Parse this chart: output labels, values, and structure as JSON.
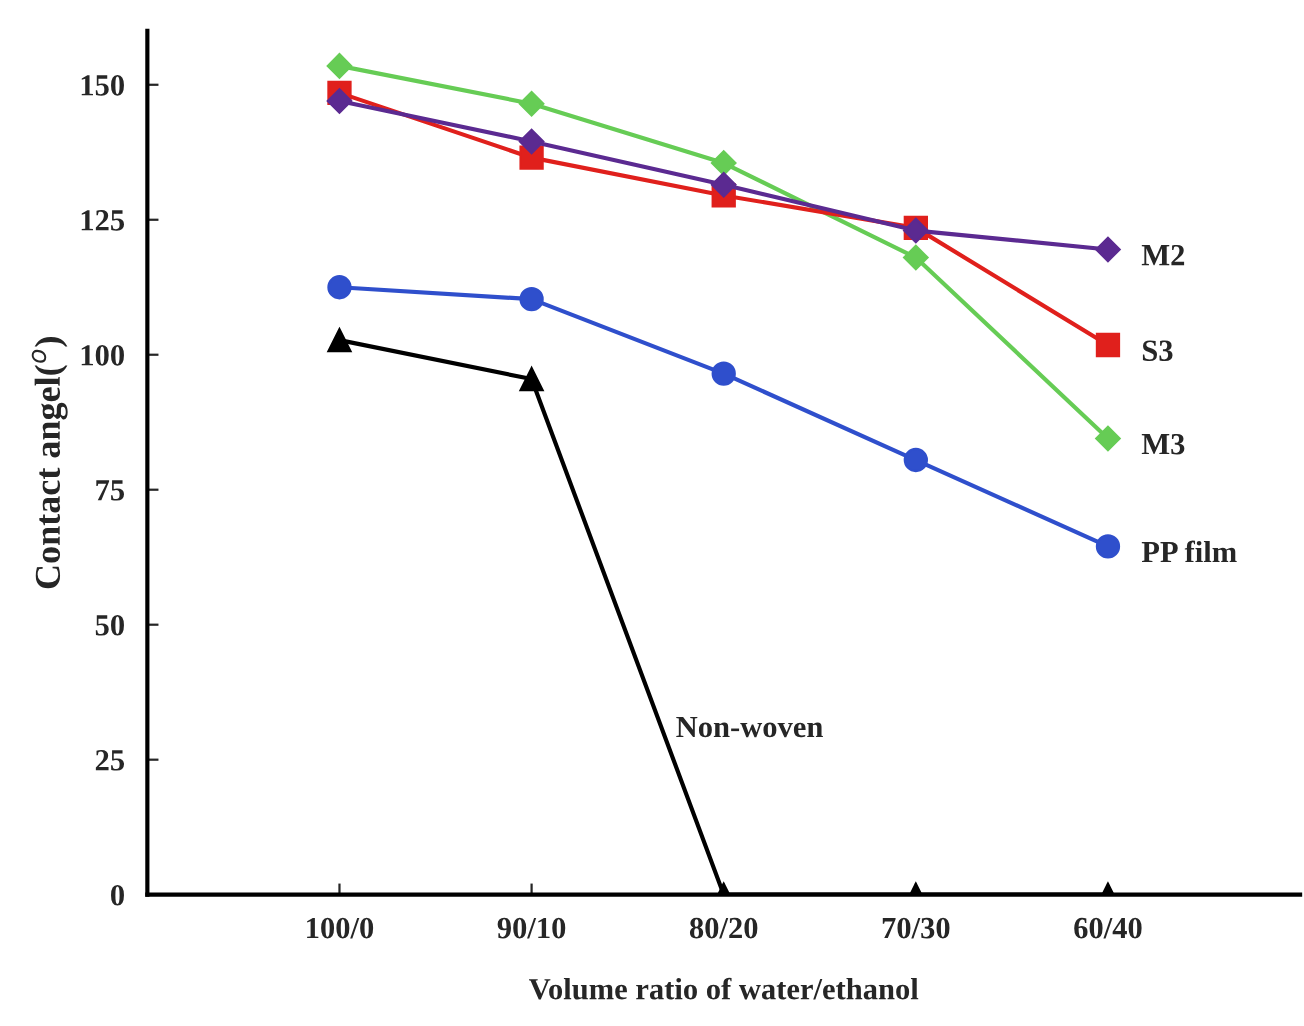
{
  "chart_data": {
    "type": "line",
    "xlabel": "Volume ratio of water/ethanol",
    "ylabel": "Contact angel($^{o}$)",
    "categories": [
      "100/0",
      "90/10",
      "80/20",
      "70/30",
      "60/40"
    ],
    "ylim": [
      0,
      160
    ],
    "yticks": [
      0,
      25,
      50,
      75,
      100,
      125,
      150
    ],
    "grid": false,
    "series": [
      {
        "name": "M2",
        "color": "#5b2a91",
        "marker": "diamond",
        "values": [
          147,
          139.5,
          131.5,
          123,
          119.5
        ]
      },
      {
        "name": "S3",
        "color": "#e0201c",
        "marker": "square",
        "values": [
          148.5,
          136.5,
          129.5,
          123.5,
          101.8
        ]
      },
      {
        "name": "M3",
        "color": "#66cc55",
        "marker": "diamond",
        "values": [
          153.5,
          146.5,
          135.5,
          118,
          84.5
        ]
      },
      {
        "name": "PP film",
        "color": "#2f4fcc",
        "marker": "circle",
        "values": [
          112.5,
          110.3,
          96.5,
          80.5,
          64.5
        ]
      },
      {
        "name": "Non-woven",
        "color": "#000000",
        "marker": "triangle",
        "values": [
          102.7,
          95.5,
          0,
          0,
          0
        ]
      }
    ]
  }
}
